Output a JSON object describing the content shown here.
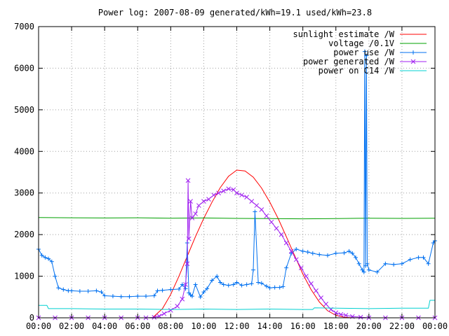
{
  "chart_data": {
    "type": "line",
    "title": "Power log: 2007-08-09 generated/kWh=19.1 used/kWh=23.8",
    "xlabel": "",
    "ylabel": "",
    "grid": true,
    "legend_position": "top-right",
    "xlim_hours": [
      0,
      24
    ],
    "ylim": [
      0,
      7000
    ],
    "x_ticks": [
      "00:00",
      "02:00",
      "04:00",
      "06:00",
      "08:00",
      "10:00",
      "12:00",
      "14:00",
      "16:00",
      "18:00",
      "20:00",
      "22:00",
      "00:00"
    ],
    "y_ticks": [
      "0",
      "1000",
      "2000",
      "3000",
      "4000",
      "5000",
      "6000",
      "7000"
    ],
    "series": [
      {
        "name": "sunlight estimate /W",
        "color": "#ff0000",
        "marker": "none",
        "x": [
          0,
          6.9,
          7.5,
          8.0,
          8.5,
          9.0,
          9.5,
          10.0,
          10.5,
          11.0,
          11.5,
          12.0,
          12.5,
          13.0,
          13.5,
          14.0,
          14.5,
          15.0,
          15.5,
          16.0,
          16.5,
          17.0,
          17.5,
          18.0,
          18.5,
          19.0,
          24
        ],
        "y": [
          0,
          0,
          220,
          560,
          1000,
          1480,
          1950,
          2390,
          2780,
          3130,
          3400,
          3550,
          3530,
          3380,
          3120,
          2780,
          2390,
          1950,
          1500,
          1050,
          680,
          380,
          170,
          60,
          15,
          0,
          0
        ]
      },
      {
        "name": "voltage /0.1V",
        "color": "#00a000",
        "marker": "none",
        "x": [
          0,
          2,
          4,
          6,
          8,
          10,
          12,
          14,
          16,
          18,
          20,
          22,
          24
        ],
        "y": [
          2410,
          2405,
          2400,
          2405,
          2395,
          2400,
          2390,
          2385,
          2380,
          2385,
          2395,
          2390,
          2395
        ]
      },
      {
        "name": "power use /W",
        "color": "#0070f0",
        "marker": "+",
        "x": [
          0,
          0.2,
          0.4,
          0.6,
          0.8,
          1.0,
          1.2,
          1.5,
          1.8,
          2.0,
          2.5,
          3.0,
          3.5,
          3.8,
          4.0,
          4.5,
          5.0,
          5.5,
          6.0,
          6.5,
          7.0,
          7.2,
          7.5,
          8.0,
          8.5,
          8.7,
          8.9,
          9.0,
          9.1,
          9.2,
          9.3,
          9.5,
          9.8,
          10.0,
          10.2,
          10.5,
          10.8,
          11.0,
          11.2,
          11.5,
          11.8,
          12.0,
          12.3,
          12.6,
          12.9,
          13.0,
          13.1,
          13.3,
          13.5,
          13.8,
          14.0,
          14.3,
          14.6,
          14.8,
          15.0,
          15.3,
          15.6,
          16.0,
          16.3,
          16.6,
          17.0,
          17.5,
          18.0,
          18.5,
          18.8,
          19.0,
          19.2,
          19.4,
          19.6,
          19.7,
          19.75,
          19.8,
          19.85,
          19.9,
          20.0,
          20.5,
          21.0,
          21.5,
          22.0,
          22.5,
          23.0,
          23.3,
          23.6,
          23.9,
          24.0
        ],
        "y": [
          1650,
          1500,
          1450,
          1420,
          1350,
          1000,
          720,
          680,
          650,
          650,
          640,
          640,
          650,
          620,
          530,
          520,
          510,
          510,
          520,
          520,
          530,
          650,
          660,
          680,
          690,
          800,
          700,
          1800,
          600,
          550,
          520,
          800,
          500,
          620,
          700,
          900,
          1000,
          850,
          800,
          780,
          800,
          850,
          780,
          800,
          820,
          1150,
          2550,
          850,
          830,
          760,
          720,
          730,
          730,
          750,
          1200,
          1550,
          1650,
          1600,
          1580,
          1550,
          1520,
          1500,
          1550,
          1560,
          1600,
          1550,
          1450,
          1300,
          1150,
          1100,
          6400,
          1250,
          6300,
          1300,
          1150,
          1100,
          1300,
          1280,
          1300,
          1400,
          1450,
          1450,
          1300,
          1800,
          1850
        ]
      },
      {
        "name": "power generated /W",
        "color": "#a020f0",
        "marker": "x",
        "x": [
          0,
          1,
          2,
          3,
          4,
          5,
          6,
          6.5,
          7.0,
          7.3,
          7.6,
          8.0,
          8.4,
          8.7,
          8.9,
          9.0,
          9.05,
          9.1,
          9.2,
          9.3,
          9.5,
          9.7,
          10.0,
          10.3,
          10.6,
          10.9,
          11.2,
          11.5,
          11.8,
          12.0,
          12.3,
          12.6,
          12.9,
          13.2,
          13.5,
          13.8,
          14.1,
          14.4,
          14.7,
          15.0,
          15.3,
          15.6,
          15.9,
          16.2,
          16.5,
          16.8,
          17.1,
          17.4,
          17.7,
          18.0,
          18.3,
          18.6,
          19.0,
          19.5,
          20.0,
          21,
          22,
          23,
          24
        ],
        "y": [
          0,
          0,
          0,
          0,
          0,
          0,
          0,
          0,
          10,
          40,
          100,
          180,
          280,
          450,
          800,
          1300,
          3300,
          1900,
          2800,
          2400,
          2500,
          2700,
          2800,
          2850,
          2950,
          3000,
          3050,
          3100,
          3080,
          3000,
          2950,
          2900,
          2800,
          2700,
          2600,
          2450,
          2300,
          2150,
          2000,
          1800,
          1600,
          1400,
          1200,
          1000,
          820,
          650,
          480,
          330,
          200,
          120,
          80,
          60,
          30,
          15,
          0,
          0,
          0,
          0,
          0
        ]
      },
      {
        "name": "power on C14 /W",
        "color": "#00d0d0",
        "marker": "none",
        "x": [
          0,
          0.5,
          0.6,
          2,
          4,
          6,
          8,
          10,
          12,
          14,
          16,
          16.6,
          16.7,
          18,
          20,
          22,
          23.6,
          23.7,
          24
        ],
        "y": [
          300,
          300,
          220,
          220,
          210,
          210,
          200,
          210,
          200,
          210,
          200,
          200,
          240,
          230,
          220,
          230,
          230,
          420,
          420
        ]
      }
    ]
  }
}
